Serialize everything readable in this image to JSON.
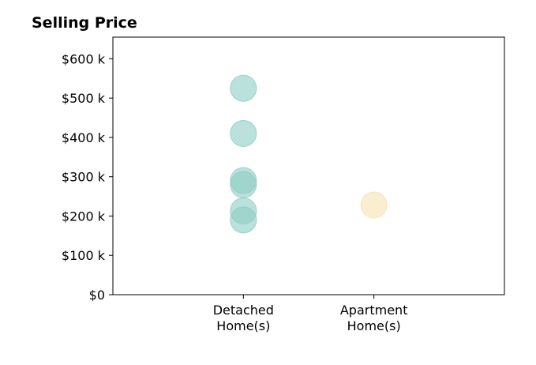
{
  "chart_data": {
    "type": "scatter",
    "title": "Selling Price",
    "xlabel": "",
    "ylabel": "",
    "categories": [
      [
        "Detached",
        "Home(s)"
      ],
      [
        "Apartment",
        "Home(s)"
      ]
    ],
    "x_range": [
      -1,
      2
    ],
    "ylim": [
      0,
      655000
    ],
    "yticks": [
      0,
      100000,
      200000,
      300000,
      400000,
      500000,
      600000
    ],
    "ytick_labels": [
      "$0",
      "$100 k",
      "$200 k",
      "$300 k",
      "$400 k",
      "$500 k",
      "$600 k"
    ],
    "grid": false,
    "series": [
      {
        "category_index": 0,
        "color": "#8ecdc4",
        "values": [
          525000,
          410000,
          290000,
          280000,
          213000,
          190000
        ]
      },
      {
        "category_index": 1,
        "color": "#f6e2b0",
        "values": [
          228000
        ]
      }
    ]
  }
}
